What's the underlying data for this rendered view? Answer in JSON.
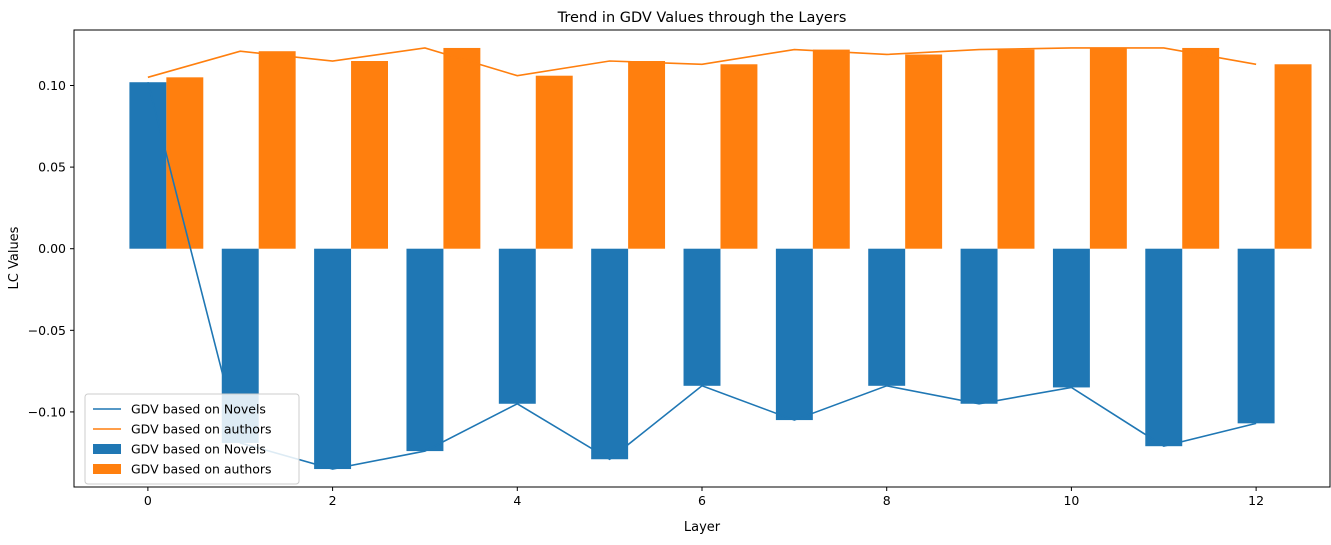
{
  "chart_data": {
    "type": "bar",
    "title": "Trend in GDV Values through the Layers",
    "xlabel": "Layer",
    "ylabel": "LC Values",
    "x": [
      0,
      1,
      2,
      3,
      4,
      5,
      6,
      7,
      8,
      9,
      10,
      11,
      12
    ],
    "xlim": [
      -0.8,
      12.8
    ],
    "ylim": [
      -0.146,
      0.134
    ],
    "xticks": [
      0,
      2,
      4,
      6,
      8,
      10,
      12
    ],
    "yticks": [
      -0.1,
      -0.05,
      0.0,
      0.05,
      0.1
    ],
    "ytick_labels": [
      "−0.10",
      "−0.05",
      "0.00",
      "0.05",
      "0.10"
    ],
    "grid": false,
    "legend_position": "lower-left",
    "series": [
      {
        "name": "GDV based on Novels",
        "color": "#1f77b4",
        "values": [
          0.102,
          -0.119,
          -0.135,
          -0.124,
          -0.095,
          -0.129,
          -0.084,
          -0.105,
          -0.084,
          -0.095,
          -0.085,
          -0.121,
          -0.107
        ]
      },
      {
        "name": "GDV based on authors",
        "color": "#ff7f0e",
        "values": [
          0.105,
          0.121,
          0.115,
          0.123,
          0.106,
          0.115,
          0.113,
          0.122,
          0.119,
          0.122,
          0.123,
          0.123,
          0.113
        ]
      }
    ],
    "legend": [
      {
        "label": "GDV based on Novels",
        "kind": "line",
        "series": 0
      },
      {
        "label": "GDV based on authors",
        "kind": "line",
        "series": 1
      },
      {
        "label": "GDV based on Novels",
        "kind": "bar",
        "series": 0
      },
      {
        "label": "GDV based on authors",
        "kind": "bar",
        "series": 1
      }
    ]
  }
}
